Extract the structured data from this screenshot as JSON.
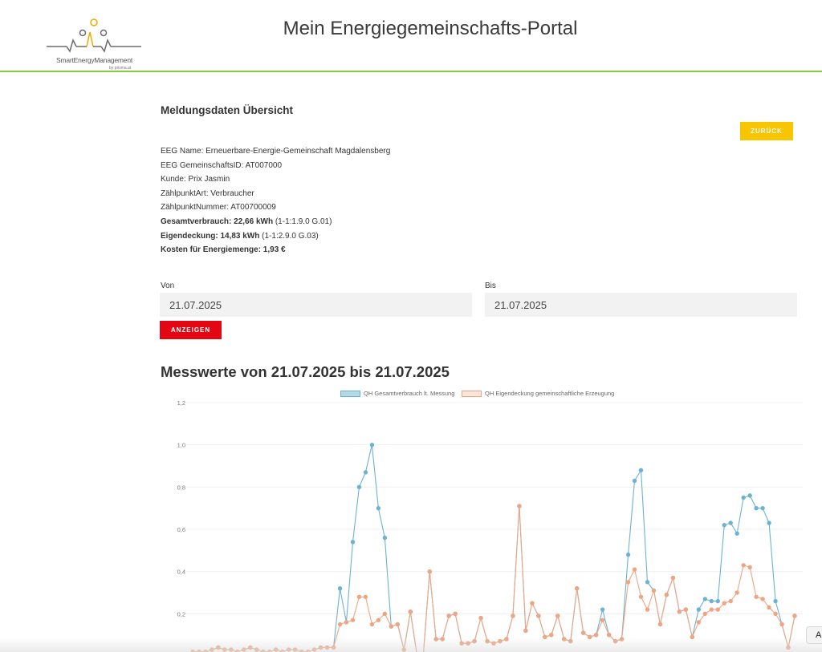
{
  "header": {
    "logo_text": "SmartEnergyManagement",
    "logo_subtext": "by prisma.at",
    "title": "Mein Energiegemeinschafts-Portal"
  },
  "overview": {
    "title": "Meldungsdaten Übersicht",
    "back_label": "ZURÜCK",
    "eeg_name_label": "EEG Name:",
    "eeg_name": "Erneuerbare-Energie-Gemeinschaft Magdalensberg",
    "eeg_id_label": "EEG GemeinschaftsID:",
    "eeg_id": "AT007000",
    "customer_label": "Kunde:",
    "customer": "Prix Jasmin",
    "meter_type_label": "ZählpunktArt:",
    "meter_type": "Verbraucher",
    "meter_number_label": "ZählpunktNummer:",
    "meter_number": "AT00700009",
    "total_label": "Gesamtverbrauch: 22,66 kWh",
    "total_code": "(1-1:1.9.0 G.01)",
    "coverage_label": "Eigendeckung: 14,83 kWh",
    "coverage_code": "(1-1:2.9.0 G.03)",
    "cost_label": "Kosten für Energiemenge: 1,93 €"
  },
  "filter": {
    "from_label": "Von",
    "from_value": "21.07.2025",
    "to_label": "Bis",
    "to_value": "21.07.2025",
    "show_label": "ANZEIGEN"
  },
  "chart_heading": "Messwerte von 21.07.2025 bis 21.07.2025",
  "chart_data": {
    "type": "line",
    "ylim": [
      0,
      1.2
    ],
    "yticks": [
      "1,2",
      "1,0",
      "0,8",
      "0,6",
      "0,4",
      "0,2"
    ],
    "grid": true,
    "legend_position": "top",
    "series": [
      {
        "name": "QH Gesamtverbrauch lt. Messung",
        "color": "#6cb2d1",
        "values": [
          0.02,
          0.02,
          0.02,
          0.03,
          0.04,
          0.03,
          0.03,
          0.02,
          0.03,
          0.04,
          0.03,
          0.02,
          0.02,
          0.03,
          0.02,
          0.03,
          0.03,
          0.02,
          0.02,
          0.03,
          0.04,
          0.04,
          0.04,
          0.32,
          0.16,
          0.54,
          0.8,
          0.87,
          1.0,
          0.7,
          0.56,
          0.14,
          0.15,
          0.03,
          0.21,
          0.01,
          0.0,
          0.4,
          0.08,
          0.08,
          0.19,
          0.2,
          0.06,
          0.06,
          0.07,
          0.18,
          0.07,
          0.06,
          0.07,
          0.08,
          0.19,
          0.71,
          0.12,
          0.25,
          0.19,
          0.09,
          0.1,
          0.19,
          0.08,
          0.07,
          0.32,
          0.11,
          0.09,
          0.1,
          0.22,
          0.1,
          0.07,
          0.08,
          0.48,
          0.83,
          0.88,
          0.35,
          0.31,
          0.15,
          0.29,
          0.37,
          0.21,
          0.22,
          0.09,
          0.22,
          0.27,
          0.26,
          0.26,
          0.62,
          0.63,
          0.58,
          0.75,
          0.76,
          0.7,
          0.7,
          0.63,
          0.26,
          0.15,
          0.04,
          0.19
        ],
        "cut_tail": 3
      },
      {
        "name": "QH Eigendeckung gemeinschaftliche Erzeugung",
        "color": "#f0a582",
        "values": [
          0.02,
          0.02,
          0.02,
          0.03,
          0.04,
          0.03,
          0.03,
          0.02,
          0.03,
          0.04,
          0.03,
          0.02,
          0.02,
          0.03,
          0.02,
          0.03,
          0.03,
          0.02,
          0.02,
          0.03,
          0.04,
          0.04,
          0.04,
          0.15,
          0.16,
          0.17,
          0.28,
          0.28,
          0.15,
          0.17,
          0.2,
          0.14,
          0.15,
          0.03,
          0.21,
          0.01,
          0.0,
          0.4,
          0.08,
          0.08,
          0.19,
          0.2,
          0.06,
          0.06,
          0.07,
          0.18,
          0.07,
          0.06,
          0.07,
          0.08,
          0.19,
          0.71,
          0.12,
          0.25,
          0.19,
          0.09,
          0.1,
          0.19,
          0.08,
          0.07,
          0.32,
          0.11,
          0.09,
          0.1,
          0.17,
          0.1,
          0.07,
          0.08,
          0.35,
          0.41,
          0.28,
          0.22,
          0.31,
          0.15,
          0.29,
          0.37,
          0.21,
          0.22,
          0.09,
          0.16,
          0.2,
          0.22,
          0.22,
          0.25,
          0.26,
          0.3,
          0.43,
          0.42,
          0.28,
          0.27,
          0.23,
          0.2,
          0.15,
          0.04,
          0.19
        ]
      }
    ]
  },
  "corner_label": "A"
}
